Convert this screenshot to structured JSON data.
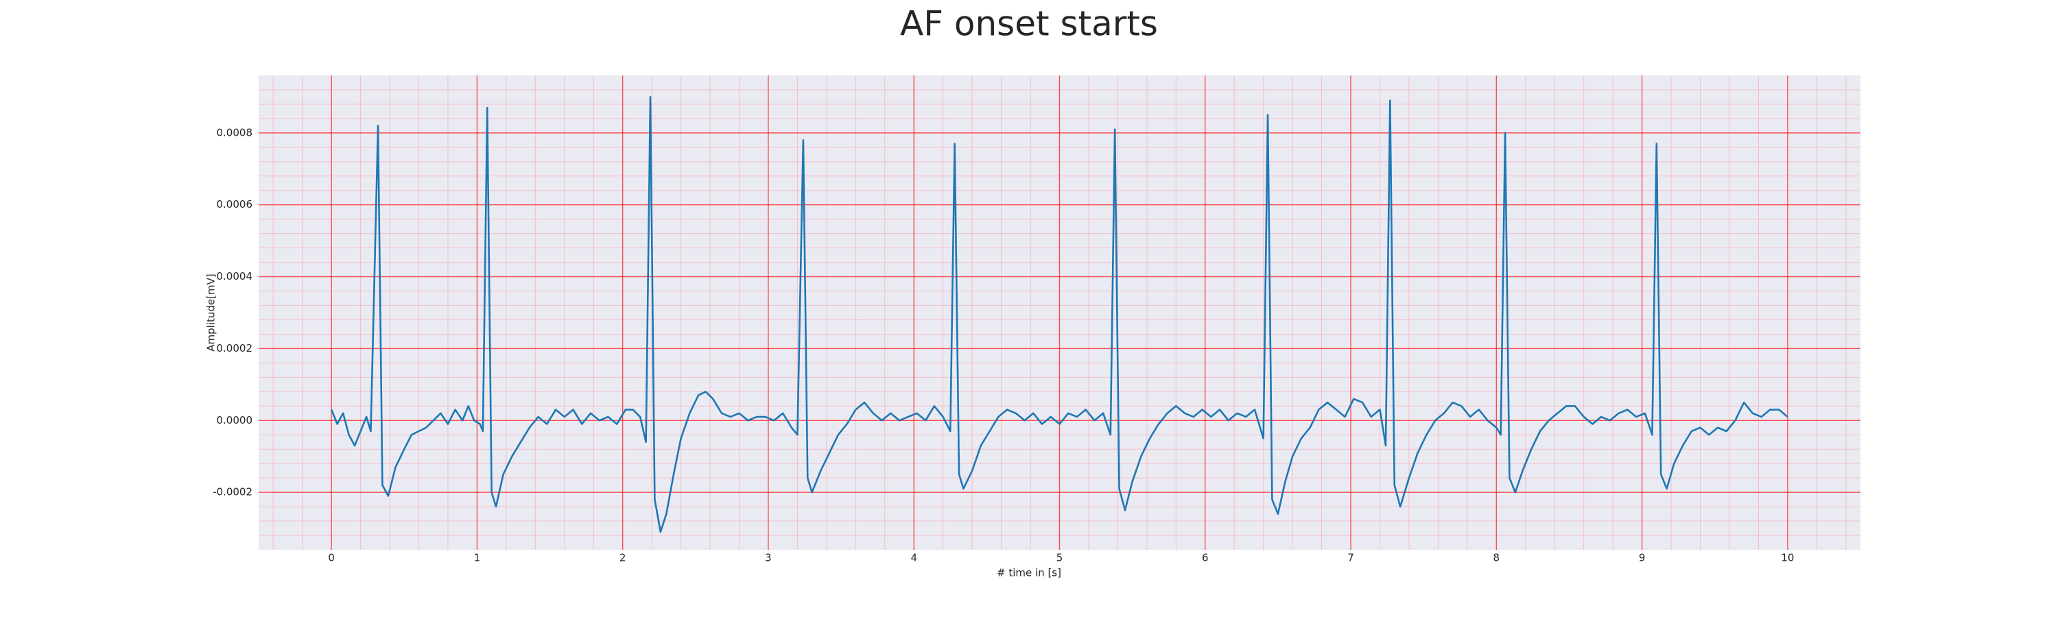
{
  "chart_data": {
    "type": "line",
    "title": "AF onset starts",
    "x_label": "# time in [s]",
    "y_label": "Amplitude[mV]",
    "color": "#1f77b4",
    "background": "#eaeaf2",
    "grid": true,
    "grid_color": "#ff0000",
    "minor_grid_color": "#ff9aa8",
    "xlim": [
      -0.5,
      10.5
    ],
    "ylim": [
      -0.00036,
      0.00096
    ],
    "xticks": [
      0,
      1,
      2,
      3,
      4,
      5,
      6,
      7,
      8,
      9,
      10
    ],
    "yticks": [
      {
        "value": -0.0002,
        "label": "-0.0002"
      },
      {
        "value": 0,
        "label": "0.0000"
      },
      {
        "value": 0.0002,
        "label": "0.0002"
      },
      {
        "value": 0.0004,
        "label": "0.0004"
      },
      {
        "value": 0.0006,
        "label": "0.0006"
      },
      {
        "value": 0.0008,
        "label": "0.0008"
      }
    ],
    "xminorticks": [
      -0.4,
      -0.2,
      0,
      0.2,
      0.4,
      0.6,
      0.8,
      1,
      1.2,
      1.4,
      1.6,
      1.8,
      2,
      2.2,
      2.4,
      2.6,
      2.8,
      3,
      3.2,
      3.4,
      3.6,
      3.8,
      4,
      4.2,
      4.4,
      4.6,
      4.8,
      5,
      5.2,
      5.4,
      5.6,
      5.8,
      6,
      6.2,
      6.4,
      6.6,
      6.8,
      7,
      7.2,
      7.4,
      7.6,
      7.8,
      8,
      8.2,
      8.4,
      8.6,
      8.8,
      9,
      9.2,
      9.4,
      9.6,
      9.8,
      10,
      10.2,
      10.4
    ],
    "yminorticks": [
      -0.00032,
      -0.00028,
      -0.00024,
      -0.0002,
      -0.00016,
      -0.00012,
      -8e-05,
      -4e-05,
      0,
      4e-05,
      8e-05,
      0.00012,
      0.00016,
      0.0002,
      0.00024,
      0.00028,
      0.00032,
      0.00036,
      0.0004,
      0.00044,
      0.00048,
      0.00052,
      0.00056,
      0.0006,
      0.00064,
      0.00068,
      0.00072,
      0.00076,
      0.0008,
      0.00084,
      0.00088,
      0.00092
    ],
    "x": [
      0,
      0.04,
      0.08,
      0.12,
      0.16,
      0.2,
      0.24,
      0.27,
      0.32,
      0.35,
      0.39,
      0.44,
      0.5,
      0.55,
      0.6,
      0.65,
      0.7,
      0.75,
      0.8,
      0.85,
      0.9,
      0.94,
      0.98,
      1.02,
      1.04,
      1.07,
      1.1,
      1.13,
      1.18,
      1.24,
      1.3,
      1.36,
      1.42,
      1.48,
      1.54,
      1.6,
      1.66,
      1.72,
      1.78,
      1.84,
      1.9,
      1.96,
      2.02,
      2.07,
      2.12,
      2.16,
      2.19,
      2.22,
      2.26,
      2.3,
      2.35,
      2.4,
      2.46,
      2.52,
      2.57,
      2.62,
      2.68,
      2.74,
      2.8,
      2.86,
      2.92,
      2.98,
      3.04,
      3.1,
      3.16,
      3.2,
      3.24,
      3.27,
      3.3,
      3.36,
      3.42,
      3.48,
      3.54,
      3.6,
      3.66,
      3.72,
      3.78,
      3.84,
      3.9,
      3.96,
      4.02,
      4.08,
      4.14,
      4.2,
      4.25,
      4.28,
      4.31,
      4.34,
      4.4,
      4.46,
      4.52,
      4.58,
      4.64,
      4.7,
      4.76,
      4.82,
      4.88,
      4.94,
      5.0,
      5.06,
      5.12,
      5.18,
      5.24,
      5.3,
      5.35,
      5.38,
      5.41,
      5.45,
      5.5,
      5.56,
      5.62,
      5.68,
      5.74,
      5.8,
      5.86,
      5.92,
      5.98,
      6.04,
      6.1,
      6.16,
      6.22,
      6.28,
      6.34,
      6.4,
      6.43,
      6.46,
      6.5,
      6.55,
      6.6,
      6.66,
      6.72,
      6.78,
      6.84,
      6.9,
      6.96,
      7.02,
      7.08,
      7.14,
      7.2,
      7.24,
      7.27,
      7.3,
      7.34,
      7.4,
      7.46,
      7.52,
      7.58,
      7.64,
      7.7,
      7.76,
      7.82,
      7.88,
      7.94,
      8.0,
      8.03,
      8.06,
      8.09,
      8.13,
      8.18,
      8.24,
      8.3,
      8.36,
      8.42,
      8.48,
      8.54,
      8.6,
      8.66,
      8.72,
      8.78,
      8.84,
      8.9,
      8.96,
      9.02,
      9.07,
      9.1,
      9.13,
      9.17,
      9.22,
      9.28,
      9.34,
      9.4,
      9.46,
      9.52,
      9.58,
      9.64,
      9.7,
      9.76,
      9.82,
      9.88,
      9.94,
      10.0
    ],
    "values": [
      3e-05,
      -1e-05,
      2e-05,
      -4e-05,
      -7e-05,
      -3e-05,
      1e-05,
      -3e-05,
      0.00082,
      -0.00018,
      -0.00021,
      -0.00013,
      -8e-05,
      -4e-05,
      -3e-05,
      -2e-05,
      0,
      2e-05,
      -1e-05,
      3e-05,
      0,
      4e-05,
      0,
      -1e-05,
      -3e-05,
      0.00087,
      -0.0002,
      -0.00024,
      -0.00015,
      -0.0001,
      -6e-05,
      -2e-05,
      1e-05,
      -1e-05,
      3e-05,
      1e-05,
      3e-05,
      -1e-05,
      2e-05,
      0,
      1e-05,
      -1e-05,
      3e-05,
      3e-05,
      1e-05,
      -6e-05,
      0.0009,
      -0.00022,
      -0.00031,
      -0.00026,
      -0.00015,
      -5e-05,
      2e-05,
      7e-05,
      8e-05,
      6e-05,
      2e-05,
      1e-05,
      2e-05,
      0,
      1e-05,
      1e-05,
      0,
      2e-05,
      -2e-05,
      -4e-05,
      0.00078,
      -0.00016,
      -0.0002,
      -0.00014,
      -9e-05,
      -4e-05,
      -1e-05,
      3e-05,
      5e-05,
      2e-05,
      0,
      2e-05,
      0,
      1e-05,
      2e-05,
      0,
      4e-05,
      1e-05,
      -3e-05,
      0.00077,
      -0.00015,
      -0.00019,
      -0.00014,
      -7e-05,
      -3e-05,
      1e-05,
      3e-05,
      2e-05,
      0,
      2e-05,
      -1e-05,
      1e-05,
      -1e-05,
      2e-05,
      1e-05,
      3e-05,
      0,
      2e-05,
      -4e-05,
      0.00081,
      -0.00019,
      -0.00025,
      -0.00017,
      -0.0001,
      -5e-05,
      -1e-05,
      2e-05,
      4e-05,
      2e-05,
      1e-05,
      3e-05,
      1e-05,
      3e-05,
      0,
      2e-05,
      1e-05,
      3e-05,
      -5e-05,
      0.00085,
      -0.00022,
      -0.00026,
      -0.00017,
      -0.0001,
      -5e-05,
      -2e-05,
      3e-05,
      5e-05,
      3e-05,
      1e-05,
      6e-05,
      5e-05,
      1e-05,
      3e-05,
      -7e-05,
      0.00089,
      -0.00018,
      -0.00024,
      -0.00016,
      -9e-05,
      -4e-05,
      0,
      2e-05,
      5e-05,
      4e-05,
      1e-05,
      3e-05,
      0,
      -2e-05,
      -4e-05,
      0.0008,
      -0.00016,
      -0.0002,
      -0.00014,
      -8e-05,
      -3e-05,
      0,
      2e-05,
      4e-05,
      4e-05,
      1e-05,
      -1e-05,
      1e-05,
      0,
      2e-05,
      3e-05,
      1e-05,
      2e-05,
      -4e-05,
      0.00077,
      -0.00015,
      -0.00019,
      -0.00012,
      -7e-05,
      -3e-05,
      -2e-05,
      -4e-05,
      -2e-05,
      -3e-05,
      0,
      5e-05,
      2e-05,
      1e-05,
      3e-05,
      3e-05,
      1e-05
    ]
  }
}
